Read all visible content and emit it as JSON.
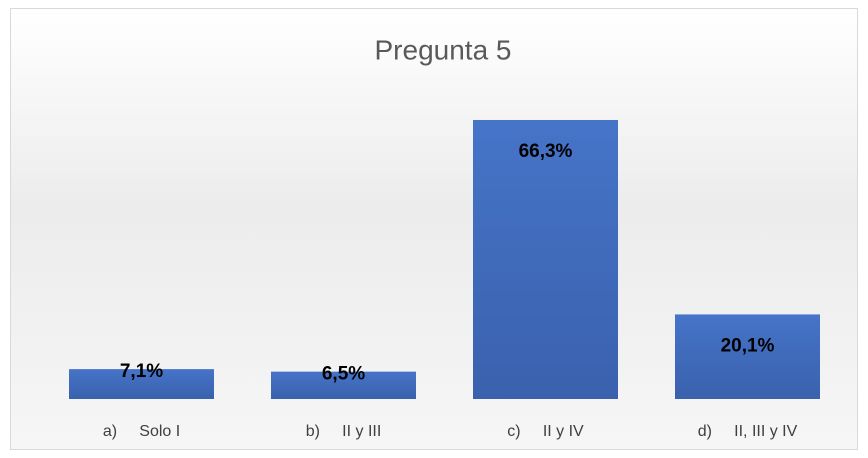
{
  "chart_data": {
    "type": "bar",
    "title": "Pregunta 5",
    "categories": [
      "a)     Solo I",
      "b)     II y III",
      "c)     II y IV",
      "d)     II, III y IV"
    ],
    "values": [
      7.1,
      6.5,
      66.3,
      20.1
    ],
    "value_labels": [
      "7,1%",
      "6,5%",
      "66,3%",
      "20,1%"
    ],
    "color": "#4472c4"
  }
}
